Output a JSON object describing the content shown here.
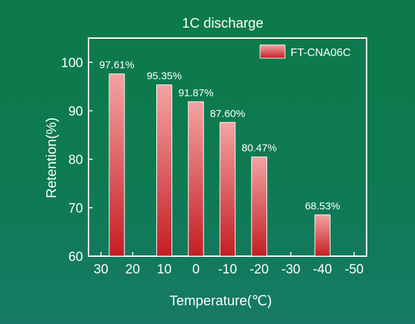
{
  "chart_data": {
    "type": "bar",
    "title": "1C discharge",
    "xlabel": "Temperature(℃)",
    "ylabel": "Retention(%)",
    "xlim": [
      30,
      -50
    ],
    "ylim": [
      60,
      105
    ],
    "x_ticks": [
      "30",
      "20",
      "10",
      "0",
      "-10",
      "-20",
      "-30",
      "-40",
      "-50"
    ],
    "y_ticks": [
      "60",
      "70",
      "80",
      "90",
      "100"
    ],
    "x_tick_values": [
      30,
      20,
      10,
      0,
      -10,
      -20,
      -30,
      -40,
      -50
    ],
    "y_tick_values": [
      60,
      70,
      80,
      90,
      100
    ],
    "legend_position": "top-right",
    "series": [
      {
        "name": "FT-CNA06C",
        "x": [
          25,
          10,
          0,
          -10,
          -20,
          -40
        ],
        "values": [
          97.61,
          95.35,
          91.87,
          87.6,
          80.47,
          68.53
        ],
        "labels": [
          "97.61%",
          "95.35%",
          "91.87%",
          "87.60%",
          "80.47%",
          "68.53%"
        ]
      }
    ],
    "colors": {
      "bar_top": "#f4a3a3",
      "bar_bottom": "#c41e24",
      "bar_edge": "#ffffff",
      "text": "#ffffff"
    }
  }
}
